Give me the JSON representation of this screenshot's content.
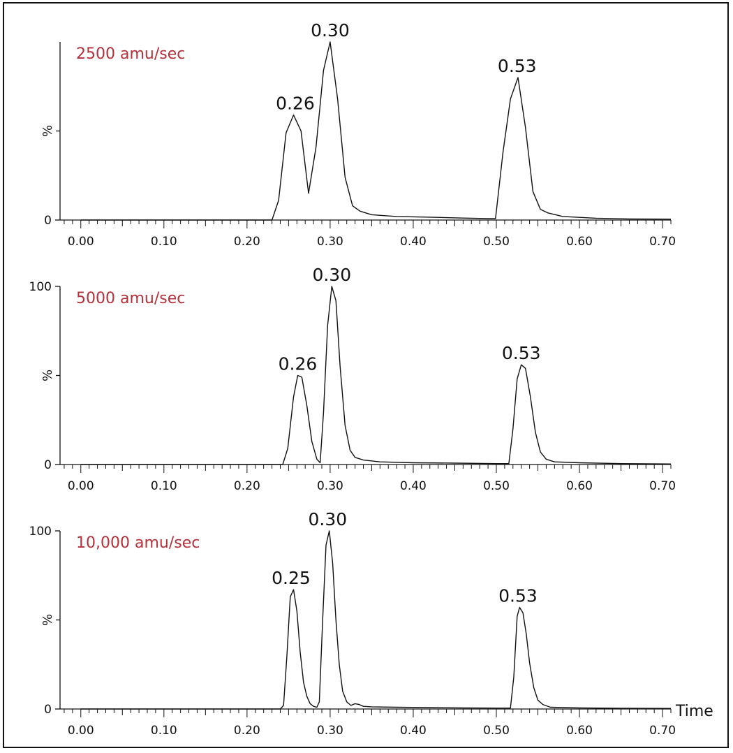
{
  "chart_data": {
    "type": "line",
    "title": "",
    "xlabel": "Time",
    "ylabel": "%",
    "xlim": [
      -0.025,
      0.71
    ],
    "x_ticks": [
      "0.00",
      "0.10",
      "0.20",
      "0.30",
      "0.40",
      "0.50",
      "0.60",
      "0.70"
    ],
    "label_color": "#b5303a",
    "line_color": "#111111",
    "panels": [
      {
        "label": "2500 amu/sec",
        "ylabel": "%",
        "ylim": [
          0,
          100
        ],
        "y_ticks": [
          "0"
        ],
        "peak_labels": [
          {
            "x": 0.258,
            "y": 59,
            "text": "0.26"
          },
          {
            "x": 0.3,
            "y": 100,
            "text": "0.30"
          },
          {
            "x": 0.525,
            "y": 80,
            "text": "0.53"
          }
        ],
        "x": [
          0.0,
          0.23,
          0.238,
          0.247,
          0.256,
          0.265,
          0.274,
          0.283,
          0.292,
          0.3,
          0.309,
          0.318,
          0.327,
          0.336,
          0.35,
          0.38,
          0.42,
          0.46,
          0.49,
          0.499,
          0.508,
          0.517,
          0.526,
          0.535,
          0.544,
          0.553,
          0.562,
          0.58,
          0.62,
          0.66,
          0.71
        ],
        "y": [
          0,
          0,
          11,
          49,
          59,
          50,
          15,
          41,
          84,
          100,
          68,
          24,
          8,
          5,
          3,
          2,
          1.6,
          1.1,
          0.8,
          0.8,
          38,
          68,
          80,
          52,
          16,
          6,
          4,
          2,
          1,
          0.6,
          0.5
        ]
      },
      {
        "label": "5000 amu/sec",
        "ylabel": "%",
        "ylim": [
          0,
          100
        ],
        "y_ticks": [
          "0",
          "100"
        ],
        "peak_labels": [
          {
            "x": 0.261,
            "y": 50,
            "text": "0.26"
          },
          {
            "x": 0.302,
            "y": 100,
            "text": "0.30"
          },
          {
            "x": 0.53,
            "y": 56,
            "text": "0.53"
          }
        ],
        "x": [
          0.0,
          0.243,
          0.249,
          0.256,
          0.261,
          0.266,
          0.272,
          0.278,
          0.284,
          0.288,
          0.292,
          0.297,
          0.302,
          0.307,
          0.312,
          0.318,
          0.324,
          0.33,
          0.34,
          0.36,
          0.4,
          0.45,
          0.5,
          0.515,
          0.52,
          0.525,
          0.53,
          0.535,
          0.541,
          0.547,
          0.553,
          0.56,
          0.57,
          0.6,
          0.65,
          0.71
        ],
        "y": [
          0,
          0,
          9,
          38,
          50,
          49,
          33,
          13,
          3,
          1,
          29,
          78,
          100,
          92,
          55,
          22,
          8,
          4,
          2.5,
          1.5,
          1,
          0.8,
          0.5,
          0.5,
          20,
          48,
          56,
          54,
          38,
          18,
          7,
          3,
          1.5,
          1,
          0.5,
          0.3
        ]
      },
      {
        "label": "10,000 amu/sec",
        "ylabel": "%",
        "ylim": [
          0,
          100
        ],
        "y_ticks": [
          "0",
          "100"
        ],
        "peak_labels": [
          {
            "x": 0.253,
            "y": 67,
            "text": "0.25"
          },
          {
            "x": 0.297,
            "y": 100,
            "text": "0.30"
          },
          {
            "x": 0.526,
            "y": 57,
            "text": "0.53"
          }
        ],
        "x": [
          0.0,
          0.24,
          0.244,
          0.248,
          0.252,
          0.256,
          0.26,
          0.264,
          0.268,
          0.272,
          0.276,
          0.28,
          0.284,
          0.287,
          0.291,
          0.295,
          0.299,
          0.303,
          0.307,
          0.311,
          0.315,
          0.32,
          0.325,
          0.33,
          0.335,
          0.34,
          0.35,
          0.38,
          0.42,
          0.46,
          0.5,
          0.517,
          0.521,
          0.525,
          0.528,
          0.532,
          0.536,
          0.54,
          0.545,
          0.55,
          0.556,
          0.565,
          0.6,
          0.65,
          0.71
        ],
        "y": [
          0,
          0,
          2,
          30,
          63,
          67,
          55,
          32,
          15,
          7,
          3,
          1.5,
          1,
          4,
          50,
          92,
          100,
          82,
          50,
          25,
          10,
          4,
          2,
          3,
          2.5,
          1.5,
          1.2,
          1,
          0.8,
          0.6,
          0.5,
          0.5,
          18,
          52,
          57,
          54,
          42,
          26,
          12,
          5,
          2.5,
          1,
          0.6,
          0.4,
          0.3
        ]
      }
    ]
  }
}
